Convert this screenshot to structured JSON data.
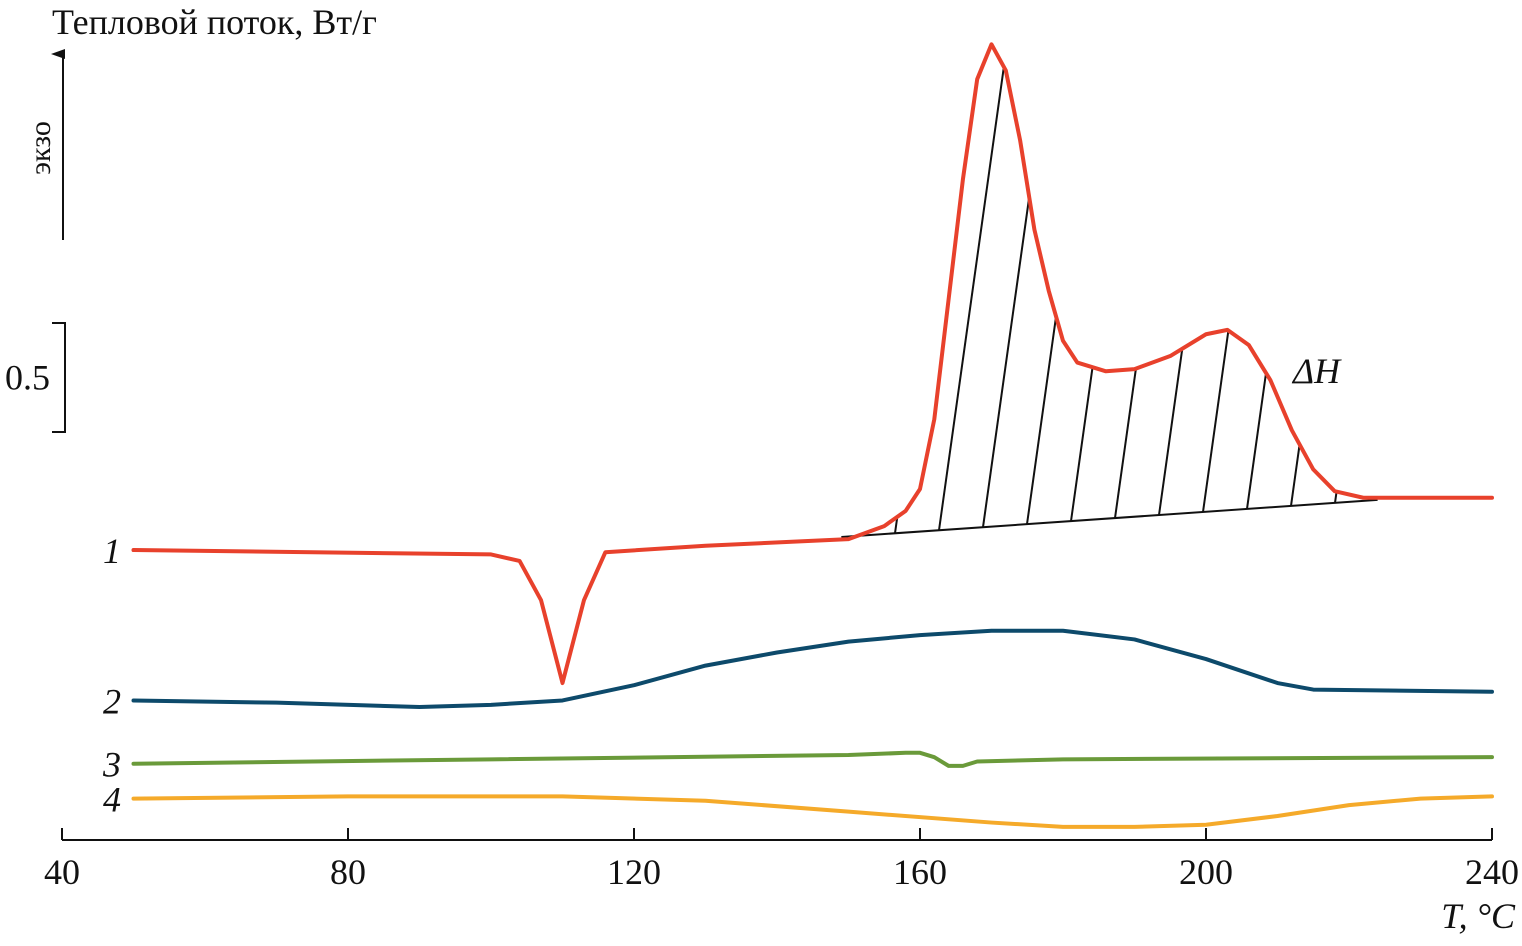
{
  "chart_data": {
    "type": "line",
    "ylabel": "Тепловой поток, Вт/г",
    "exo_label": "экзо",
    "xlabel": "T, °C",
    "annotation": "ΔH",
    "scale_bar": {
      "value": 0.5,
      "label": "0.5"
    },
    "xlim": [
      40,
      240
    ],
    "xticks": [
      40,
      80,
      120,
      160,
      200,
      240
    ],
    "ylim": [
      0,
      3.7
    ],
    "baseline": {
      "x": [
        149,
        224
      ],
      "values": [
        1.39,
        1.56
      ]
    },
    "series": [
      {
        "name": "1",
        "color": "#e8412c",
        "x": [
          50,
          100,
          104,
          107,
          110,
          113,
          116,
          130,
          150,
          155,
          158,
          160,
          162,
          164,
          166,
          168,
          170,
          172,
          174,
          176,
          178,
          180,
          182,
          186,
          190,
          195,
          200,
          203,
          206,
          209,
          212,
          215,
          218,
          222,
          240
        ],
        "values": [
          1.33,
          1.31,
          1.28,
          1.1,
          0.72,
          1.1,
          1.32,
          1.35,
          1.38,
          1.44,
          1.51,
          1.61,
          1.93,
          2.48,
          3.03,
          3.49,
          3.65,
          3.53,
          3.21,
          2.8,
          2.52,
          2.29,
          2.19,
          2.15,
          2.16,
          2.22,
          2.32,
          2.34,
          2.27,
          2.11,
          1.88,
          1.7,
          1.6,
          1.57,
          1.57
        ]
      },
      {
        "name": "2",
        "color": "#0d4a6b",
        "x": [
          50,
          70,
          90,
          100,
          110,
          120,
          130,
          140,
          150,
          160,
          170,
          180,
          190,
          200,
          210,
          215,
          240
        ],
        "values": [
          0.64,
          0.63,
          0.61,
          0.62,
          0.64,
          0.71,
          0.8,
          0.86,
          0.91,
          0.94,
          0.96,
          0.96,
          0.92,
          0.83,
          0.72,
          0.69,
          0.68
        ]
      },
      {
        "name": "3",
        "color": "#6a9a3a",
        "x": [
          50,
          100,
          150,
          158,
          160,
          162,
          164,
          166,
          168,
          180,
          240
        ],
        "values": [
          0.35,
          0.37,
          0.39,
          0.4,
          0.4,
          0.38,
          0.34,
          0.34,
          0.36,
          0.37,
          0.38
        ]
      },
      {
        "name": "4",
        "color": "#f5aa2a",
        "x": [
          50,
          80,
          110,
          130,
          150,
          170,
          180,
          190,
          200,
          210,
          220,
          230,
          240
        ],
        "values": [
          0.19,
          0.2,
          0.2,
          0.18,
          0.13,
          0.08,
          0.06,
          0.06,
          0.07,
          0.11,
          0.16,
          0.19,
          0.2
        ]
      }
    ]
  }
}
